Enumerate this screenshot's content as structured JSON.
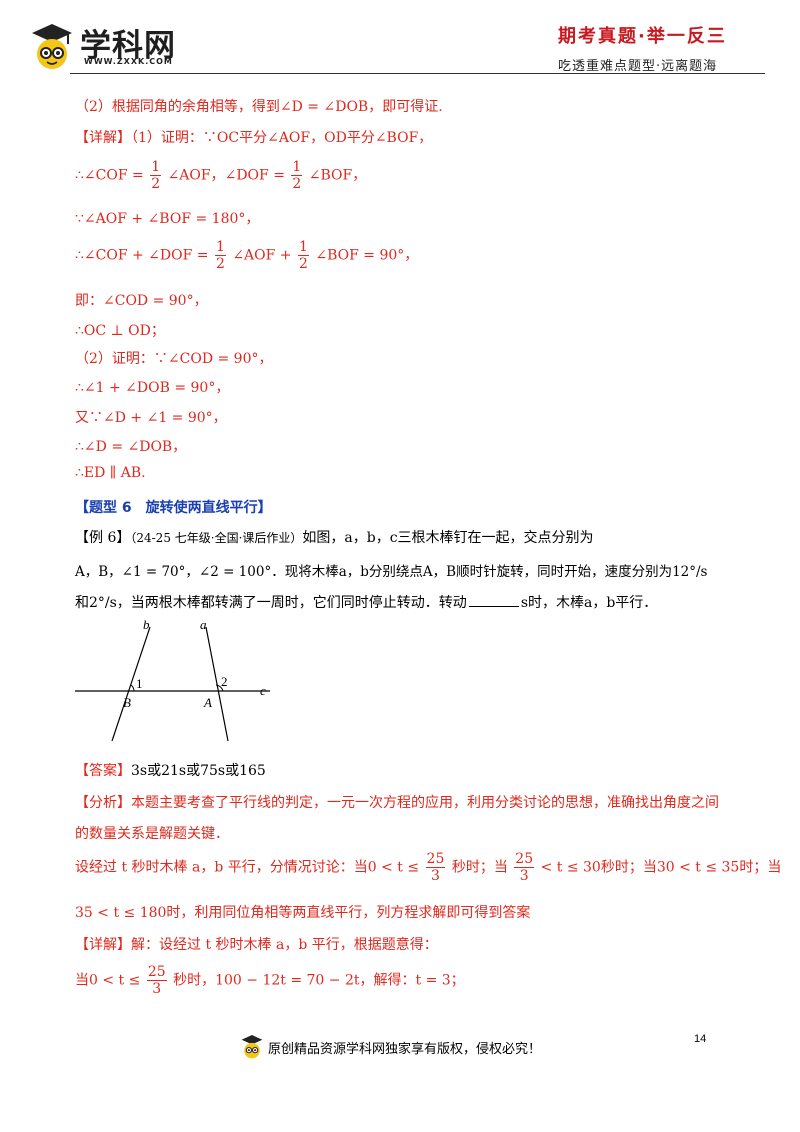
{
  "header": {
    "logo_text": "学科网",
    "logo_url": "WWW.ZXXK.COM",
    "slogan_main": "期考真题·举一反三",
    "slogan_sub": "吃透重难点题型·远离题海"
  },
  "section1": {
    "analysis2": "（2）根据同角的余角相等，得到∠D = ∠DOB，即可得证.",
    "detail_tag": "【详解】",
    "l1": "（1）证明：∵OC平分∠AOF，OD平分∠BOF，",
    "l2_pre": "∴∠COF =",
    "l2_mid": "∠AOF，∠DOF =",
    "l2_post": "∠BOF，",
    "l3": "∵∠AOF + ∠BOF = 180°，",
    "l4_pre": "∴∠COF + ∠DOF =",
    "l4_mid": "∠AOF +",
    "l4_post": "∠BOF = 90°，",
    "l5": "即：∠COD = 90°，",
    "l6": "∴OC ⊥ OD；",
    "l7": "（2）证明：∵∠COD = 90°，",
    "l8": "∴∠1 + ∠DOB = 90°，",
    "l9": "又∵∠D + ∠1 = 90°，",
    "l10": "∴∠D = ∠DOB，",
    "l11": "∴ED ∥ AB.",
    "half_num": "1",
    "half_den": "2"
  },
  "section2": {
    "heading": "【题型 6　旋转使两直线平行】",
    "ex_tag": "【例 6】",
    "ex_src": "（24-25 七年级·全国·课后作业）",
    "ex_l1": "如图，a，b，c三根木棒钉在一起，交点分别为",
    "ex_l2": "A，B，∠1 = 70°，∠2 = 100°．现将木棒a，b分别绕点A，B顺时针旋转，同时开始，速度分别为12°/s",
    "ex_l3a": "和2°/s，当两根木棒都转满了一周时，它们同时停止转动．转动",
    "ex_l3b": "s时，木棒a，b平行．",
    "fig": {
      "b": "b",
      "a": "a",
      "c": "c",
      "one": "1",
      "two": "2",
      "B": "B",
      "A": "A"
    },
    "ans_tag": "【答案】",
    "ans": "3s或21s或75s或165",
    "ana_tag": "【分析】",
    "ana1": "本题主要考查了平行线的判定，一元一次方程的应用，利用分类讨论的思想，准确找出角度之间",
    "ana2": "的数量关系是解题关键．",
    "ana3a": "设经过 t 秒时木棒 a，b 平行，分情况讨论：当0 < t ≤",
    "ana3b": "秒时；当",
    "ana3c": "< t ≤ 30秒时；当30 < t ≤ 35时；当",
    "ana4": "35 < t ≤ 180时，利用同位角相等两直线平行，列方程求解即可得到答案",
    "det_tag": "【详解】",
    "det1": "解：设经过 t 秒时木棒 a，b 平行，根据题意得：",
    "det2a": "当0 < t ≤",
    "det2b": "秒时，100 − 12t = 70 − 2t，解得：t = 3；",
    "frac_num": "25",
    "frac_den": "3"
  },
  "footer": {
    "page_no": "14",
    "copyright": "原创精品资源学科网独家享有版权，侵权必究！"
  }
}
